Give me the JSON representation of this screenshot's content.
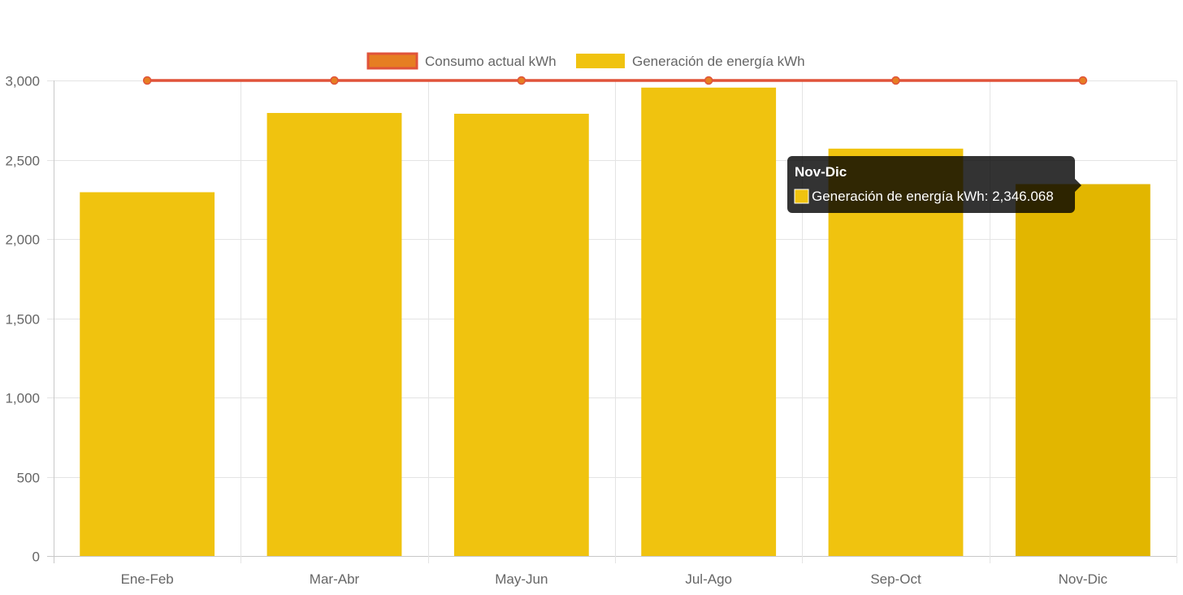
{
  "chart_data": {
    "type": "bar",
    "categories": [
      "Ene-Feb",
      "Mar-Abr",
      "May-Jun",
      "Jul-Ago",
      "Sep-Oct",
      "Nov-Dic"
    ],
    "series": [
      {
        "name": "Consumo actual kWh",
        "kind": "line",
        "values": [
          3000,
          3000,
          3000,
          3000,
          3000,
          3000
        ],
        "color": "#e0533a",
        "point_color": "#e67e22"
      },
      {
        "name": "Generación de energía kWh",
        "kind": "bar",
        "values": [
          2295,
          2795,
          2790,
          2955,
          2570,
          2346.068
        ],
        "color": "#f0c30f",
        "hover_color": "#e2b600"
      }
    ],
    "yticks": [
      0,
      500,
      1000,
      1500,
      2000,
      2500,
      3000
    ],
    "ytick_labels": [
      "0",
      "500",
      "1,000",
      "1,500",
      "2,000",
      "2,500",
      "3,000"
    ],
    "ylim": [
      0,
      3000
    ],
    "grid": true,
    "legend_position": "top-center",
    "tooltip": {
      "category": "Nov-Dic",
      "title": "Nov-Dic",
      "label": "Generación de energía kWh: 2,346.068"
    }
  }
}
